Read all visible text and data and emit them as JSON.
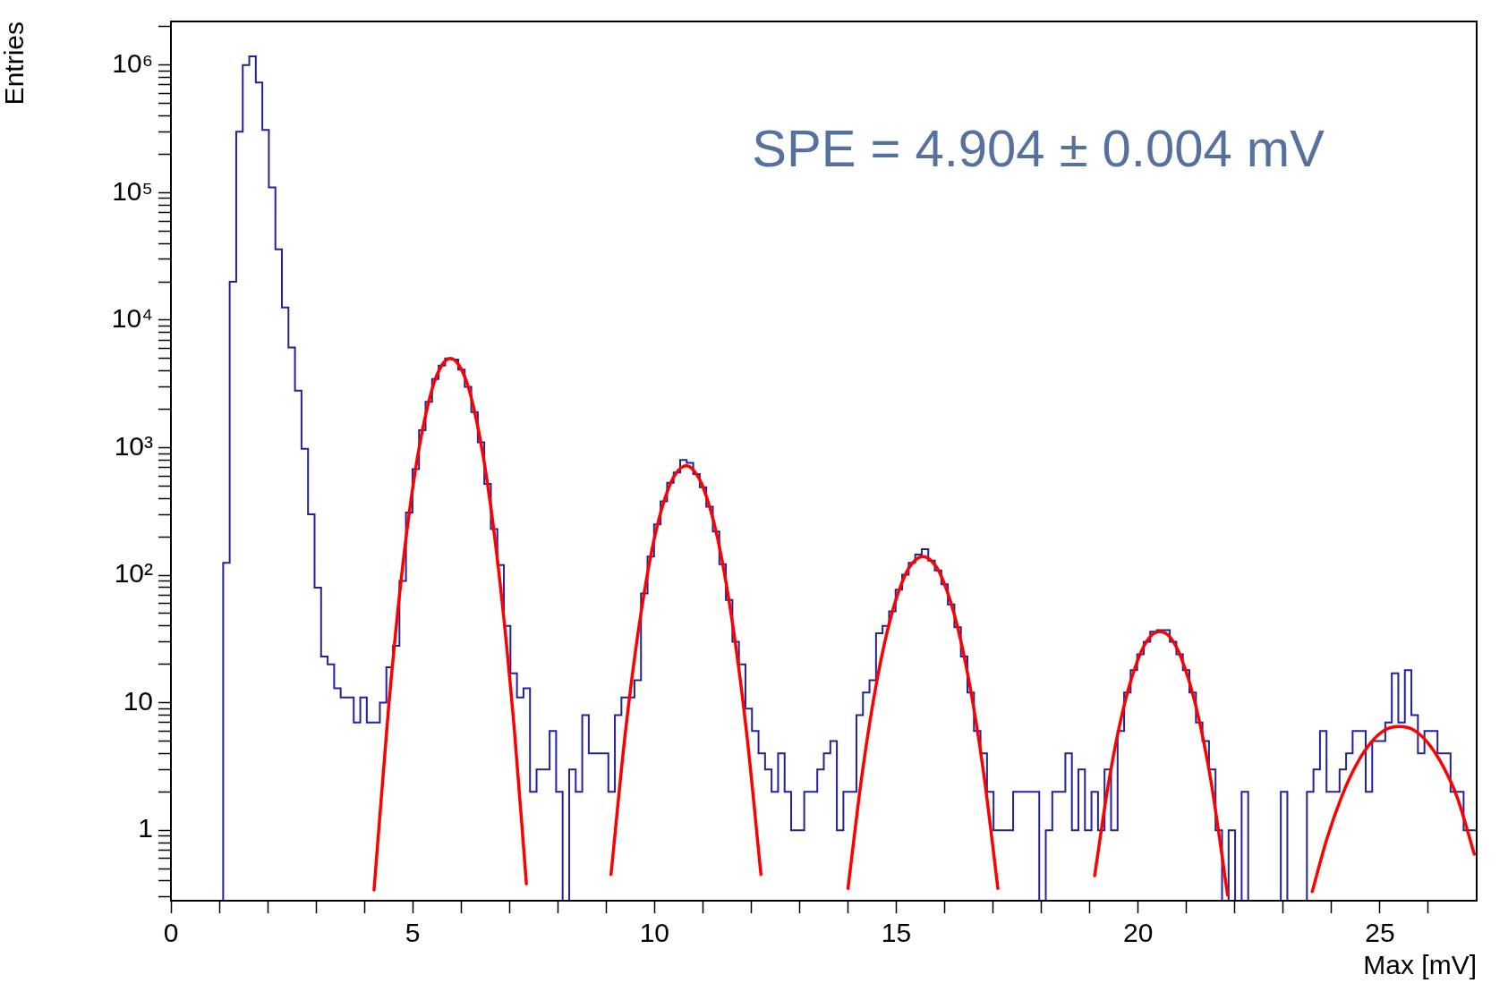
{
  "chart_data": {
    "type": "histogram",
    "xlabel": "Max [mV]",
    "ylabel": "Entries",
    "log": "y",
    "color": "#22229a",
    "xlim": [
      0,
      27
    ],
    "xticks": [
      0,
      {
        "value": 1,
        "label": null
      },
      {
        "value": 2,
        "label": null
      },
      {
        "value": 3,
        "label": null
      },
      {
        "value": 4,
        "label": null
      },
      5,
      {
        "value": 6,
        "label": null
      },
      {
        "value": 7,
        "label": null
      },
      {
        "value": 8,
        "label": null
      },
      {
        "value": 9,
        "label": null
      },
      10,
      {
        "value": 11,
        "label": null
      },
      {
        "value": 12,
        "label": null
      },
      {
        "value": 13,
        "label": null
      },
      {
        "value": 14,
        "label": null
      },
      15,
      {
        "value": 16,
        "label": null
      },
      {
        "value": 17,
        "label": null
      },
      {
        "value": 18,
        "label": null
      },
      {
        "value": 19,
        "label": null
      },
      20,
      {
        "value": 21,
        "label": null
      },
      {
        "value": 22,
        "label": null
      },
      {
        "value": 23,
        "label": null
      },
      {
        "value": 24,
        "label": null
      },
      25,
      {
        "value": 26,
        "label": null
      }
    ],
    "ylim": [
      0.28,
      2200000
    ],
    "yticks": [
      {
        "value": 0.3,
        "label": null
      },
      {
        "value": 0.4,
        "label": null
      },
      {
        "value": 0.5,
        "label": null
      },
      {
        "value": 0.6,
        "label": null
      },
      {
        "value": 0.7,
        "label": null
      },
      {
        "value": 0.8,
        "label": null
      },
      {
        "value": 0.9,
        "label": null
      },
      1,
      {
        "value": 2,
        "label": null
      },
      {
        "value": 3,
        "label": null
      },
      {
        "value": 4,
        "label": null
      },
      {
        "value": 5,
        "label": null
      },
      {
        "value": 6,
        "label": null
      },
      {
        "value": 7,
        "label": null
      },
      {
        "value": 8,
        "label": null
      },
      {
        "value": 9,
        "label": null
      },
      10,
      {
        "value": 20,
        "label": null
      },
      {
        "value": 30,
        "label": null
      },
      {
        "value": 40,
        "label": null
      },
      {
        "value": 50,
        "label": null
      },
      {
        "value": 60,
        "label": null
      },
      {
        "value": 70,
        "label": null
      },
      {
        "value": 80,
        "label": null
      },
      {
        "value": 90,
        "label": null
      },
      {
        "value": 100,
        "label": "10²"
      },
      {
        "value": 200,
        "label": null
      },
      {
        "value": 300,
        "label": null
      },
      {
        "value": 400,
        "label": null
      },
      {
        "value": 500,
        "label": null
      },
      {
        "value": 600,
        "label": null
      },
      {
        "value": 700,
        "label": null
      },
      {
        "value": 800,
        "label": null
      },
      {
        "value": 900,
        "label": null
      },
      {
        "value": 1000,
        "label": "10³"
      },
      {
        "value": 2000,
        "label": null
      },
      {
        "value": 3000,
        "label": null
      },
      {
        "value": 4000,
        "label": null
      },
      {
        "value": 5000,
        "label": null
      },
      {
        "value": 6000,
        "label": null
      },
      {
        "value": 7000,
        "label": null
      },
      {
        "value": 8000,
        "label": null
      },
      {
        "value": 9000,
        "label": null
      },
      {
        "value": 10000,
        "label": "10⁴"
      },
      {
        "value": 20000,
        "label": null
      },
      {
        "value": 30000,
        "label": null
      },
      {
        "value": 40000,
        "label": null
      },
      {
        "value": 50000,
        "label": null
      },
      {
        "value": 60000,
        "label": null
      },
      {
        "value": 70000,
        "label": null
      },
      {
        "value": 80000,
        "label": null
      },
      {
        "value": 90000,
        "label": null
      },
      {
        "value": 100000,
        "label": "10⁵"
      },
      {
        "value": 200000,
        "label": null
      },
      {
        "value": 300000,
        "label": null
      },
      {
        "value": 400000,
        "label": null
      },
      {
        "value": 500000,
        "label": null
      },
      {
        "value": 600000,
        "label": null
      },
      {
        "value": 700000,
        "label": null
      },
      {
        "value": 800000,
        "label": null
      },
      {
        "value": 900000,
        "label": null
      },
      {
        "value": 1000000,
        "label": "10⁶"
      },
      {
        "value": 2000000,
        "label": null
      }
    ],
    "annotations": [
      "SPE = 4.904 ± 0.004 mV"
    ],
    "bins": [
      0,
      0.135,
      0.27,
      0.405,
      0.54,
      0.675,
      0.81,
      0.945,
      1.08,
      1.215,
      1.35,
      1.485,
      1.62,
      1.755,
      1.89,
      2.025,
      2.16,
      2.295,
      2.43,
      2.565,
      2.7,
      2.835,
      2.97,
      3.105,
      3.24,
      3.375,
      3.51,
      3.645,
      3.78,
      3.915,
      4.05,
      4.185,
      4.32,
      4.455,
      4.59,
      4.725,
      4.86,
      4.995,
      5.13,
      5.265,
      5.4,
      5.535,
      5.67,
      5.805,
      5.94,
      6.075,
      6.21,
      6.345,
      6.48,
      6.615,
      6.75,
      6.885,
      7.02,
      7.155,
      7.29,
      7.425,
      7.56,
      7.695,
      7.83,
      7.965,
      8.1,
      8.235,
      8.37,
      8.505,
      8.64,
      8.775,
      8.91,
      9.045,
      9.18,
      9.315,
      9.45,
      9.585,
      9.72,
      9.855,
      9.99,
      10.125,
      10.26,
      10.395,
      10.53,
      10.665,
      10.8,
      10.935,
      11.07,
      11.205,
      11.34,
      11.475,
      11.61,
      11.745,
      11.88,
      12.015,
      12.15,
      12.285,
      12.42,
      12.555,
      12.69,
      12.825,
      12.96,
      13.095,
      13.23,
      13.365,
      13.5,
      13.635,
      13.77,
      13.905,
      14.04,
      14.175,
      14.31,
      14.445,
      14.58,
      14.715,
      14.85,
      14.985,
      15.12,
      15.255,
      15.39,
      15.525,
      15.66,
      15.795,
      15.93,
      16.065,
      16.2,
      16.335,
      16.47,
      16.605,
      16.74,
      16.875,
      17.01,
      17.145,
      17.28,
      17.415,
      17.55,
      17.685,
      17.82,
      17.955,
      18.09,
      18.225,
      18.36,
      18.495,
      18.63,
      18.765,
      18.9,
      19.035,
      19.17,
      19.305,
      19.44,
      19.575,
      19.71,
      19.845,
      19.98,
      20.115,
      20.25,
      20.385,
      20.52,
      20.655,
      20.79,
      20.925,
      21.06,
      21.195,
      21.33,
      21.465,
      21.6,
      21.735,
      21.87,
      22.005,
      22.14,
      22.275,
      22.41,
      22.545,
      22.68,
      22.815,
      22.95,
      23.085,
      23.22,
      23.355,
      23.49,
      23.625,
      23.76,
      23.895,
      24.03,
      24.165,
      24.3,
      24.435,
      24.57,
      24.705,
      24.84,
      24.975,
      25.11,
      25.245,
      25.38,
      25.515,
      25.65,
      25.785,
      25.92,
      26.055,
      26.19,
      26.325,
      26.46,
      26.595,
      26.73,
      26.865,
      27
    ],
    "values": [
      null,
      null,
      null,
      null,
      null,
      null,
      null,
      null,
      125,
      20000,
      300000,
      1000000,
      1170000,
      730000,
      310000,
      110000,
      36000,
      12600,
      6100,
      2800,
      980,
      300,
      80,
      23,
      20,
      13,
      11,
      11,
      7,
      11,
      7,
      7,
      10,
      19,
      28,
      90,
      310,
      680,
      1370,
      2290,
      3460,
      4400,
      5000,
      4900,
      4100,
      3000,
      1900,
      1100,
      520,
      230,
      120,
      40,
      17,
      11,
      13,
      2,
      3,
      3,
      6,
      2,
      null,
      3,
      2,
      8,
      4,
      4,
      4,
      2,
      8,
      11,
      11,
      15,
      72,
      140,
      250,
      380,
      530,
      640,
      800,
      760,
      620,
      490,
      345,
      220,
      122,
      64,
      30,
      20,
      9,
      6,
      4,
      3,
      2,
      4,
      2,
      1,
      1,
      2,
      2,
      3,
      4,
      5,
      1,
      2,
      2,
      8,
      12,
      15,
      35,
      40,
      52,
      77,
      101,
      125,
      145,
      160,
      130,
      109,
      85,
      59,
      39,
      23,
      12,
      6,
      4,
      2,
      1,
      1,
      1,
      2,
      2,
      2,
      2,
      null,
      1,
      2,
      2,
      4,
      1,
      3,
      1,
      2,
      1,
      3,
      1,
      6,
      12,
      18,
      24,
      30,
      36,
      37,
      37,
      30,
      24,
      18,
      12,
      7,
      5,
      3,
      1,
      null,
      1,
      null,
      2,
      null,
      null,
      null,
      null,
      null,
      2,
      null,
      null,
      null,
      2,
      3,
      6,
      2,
      2,
      3,
      4,
      6,
      6,
      2,
      5,
      5,
      7,
      17,
      7,
      18,
      8,
      4,
      6,
      6,
      4,
      4,
      2,
      2,
      1,
      1
    ],
    "series": [
      {
        "type": "line",
        "color": "#ff0000",
        "x": [
          4.2,
          4.5,
          4.8,
          5.1,
          5.4,
          5.6,
          5.78,
          6.0,
          6.2,
          6.5,
          6.8,
          7.1,
          7.35
        ],
        "values": [
          0.34,
          9.1,
          125,
          850,
          2880,
          4420,
          5000,
          4150,
          2560,
          680,
          91,
          6.2,
          0.38
        ]
      },
      {
        "type": "line",
        "color": "#ff0000",
        "x": [
          9.1,
          9.4,
          9.7,
          10.0,
          10.3,
          10.5,
          10.65,
          10.8,
          11.0,
          11.3,
          11.6,
          11.9,
          12.2
        ],
        "values": [
          0.45,
          6,
          45,
          198,
          494,
          670,
          720,
          670,
          494,
          198,
          45,
          6,
          0.45
        ]
      },
      {
        "type": "line",
        "color": "#ff0000",
        "x": [
          14.0,
          14.3,
          14.6,
          14.9,
          15.2,
          15.4,
          15.55,
          15.7,
          15.9,
          16.2,
          16.5,
          16.8,
          17.1
        ],
        "values": [
          0.35,
          2.9,
          15,
          49,
          104,
          132,
          140,
          132,
          104,
          49,
          15,
          2.9,
          0.35
        ]
      },
      {
        "type": "line",
        "color": "#ff0000",
        "x": [
          19.1,
          19.4,
          19.7,
          20.0,
          20.25,
          20.45,
          20.65,
          20.9,
          21.2,
          21.5,
          21.85
        ],
        "values": [
          0.44,
          2.5,
          9.2,
          22,
          33,
          36,
          33,
          22,
          9.2,
          2.5,
          0.31
        ]
      },
      {
        "type": "line",
        "color": "#ff0000",
        "x": [
          23.6,
          23.9,
          24.2,
          24.5,
          24.8,
          25.1,
          25.4,
          25.7,
          26.0,
          26.3,
          26.6,
          26.95
        ],
        "values": [
          0.33,
          0.85,
          1.8,
          3.2,
          4.8,
          6.1,
          6.5,
          6.1,
          4.8,
          3.2,
          1.8,
          0.65
        ]
      }
    ]
  }
}
